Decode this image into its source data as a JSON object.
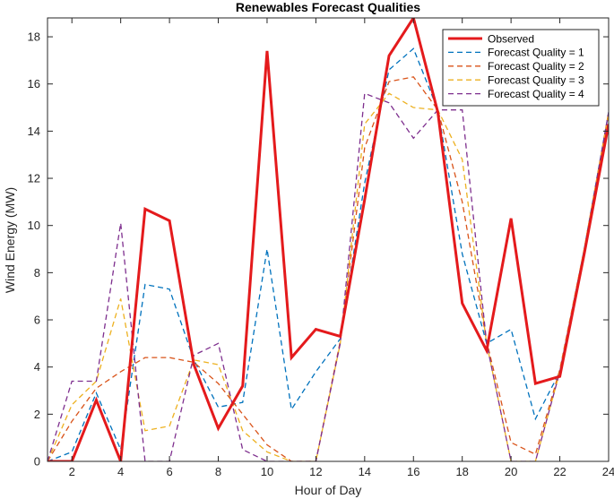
{
  "chart_data": {
    "type": "line",
    "title": "Renewables Forecast Qualities",
    "xlabel": "Hour of Day",
    "ylabel": "Wind Energy (MW)",
    "xlim": [
      1,
      24
    ],
    "ylim": [
      0,
      18.8
    ],
    "xticks": [
      2,
      4,
      6,
      8,
      10,
      12,
      14,
      16,
      18,
      20,
      22,
      24
    ],
    "yticks": [
      0,
      2,
      4,
      6,
      8,
      10,
      12,
      14,
      16,
      18
    ],
    "legend_position": "top-right",
    "grid": false,
    "x": [
      1,
      2,
      3,
      4,
      5,
      6,
      7,
      8,
      9,
      10,
      11,
      12,
      13,
      14,
      15,
      16,
      17,
      18,
      19,
      20,
      21,
      22,
      23,
      24
    ],
    "series": [
      {
        "name": "Observed",
        "color": "#e41a1c",
        "style": "solid",
        "values": [
          0.0,
          0.0,
          2.6,
          0.0,
          10.7,
          10.2,
          4.1,
          1.4,
          3.2,
          17.4,
          4.4,
          5.6,
          5.3,
          11.1,
          17.2,
          18.8,
          14.8,
          6.7,
          4.7,
          10.3,
          3.3,
          3.6,
          8.8,
          14.3
        ]
      },
      {
        "name": "Forecast Quality = 1",
        "color": "#0072bd",
        "style": "dashed",
        "values": [
          0.0,
          0.4,
          2.9,
          0.5,
          7.5,
          7.3,
          4.3,
          2.3,
          2.5,
          9.0,
          2.2,
          3.8,
          5.2,
          11.8,
          16.6,
          17.5,
          14.9,
          8.8,
          5.0,
          5.6,
          1.8,
          3.8,
          9.0,
          14.8
        ]
      },
      {
        "name": "Forecast Quality = 2",
        "color": "#d95319",
        "style": "dashed",
        "values": [
          0.0,
          1.7,
          3.1,
          3.8,
          4.4,
          4.4,
          4.2,
          3.3,
          2.0,
          0.7,
          0.0,
          0.0,
          5.1,
          13.3,
          16.1,
          16.3,
          14.9,
          11.0,
          5.1,
          0.8,
          0.3,
          3.9,
          9.0,
          14.8
        ]
      },
      {
        "name": "Forecast Quality = 3",
        "color": "#edb120",
        "style": "dashed",
        "values": [
          0.0,
          2.4,
          3.4,
          6.9,
          1.3,
          1.5,
          4.3,
          4.1,
          1.3,
          0.4,
          0.0,
          0.0,
          5.0,
          14.3,
          15.6,
          15.0,
          14.9,
          12.8,
          5.0,
          0.0,
          0.0,
          3.8,
          9.0,
          14.7
        ]
      },
      {
        "name": "Forecast Quality = 4",
        "color": "#7e2f8e",
        "style": "dashed",
        "values": [
          0.0,
          3.4,
          3.4,
          10.1,
          0.0,
          0.0,
          4.5,
          5.0,
          0.5,
          0.0,
          0.0,
          0.0,
          5.0,
          15.6,
          15.2,
          13.7,
          14.9,
          14.9,
          5.0,
          0.0,
          0.0,
          3.8,
          8.9,
          14.8
        ]
      }
    ]
  }
}
